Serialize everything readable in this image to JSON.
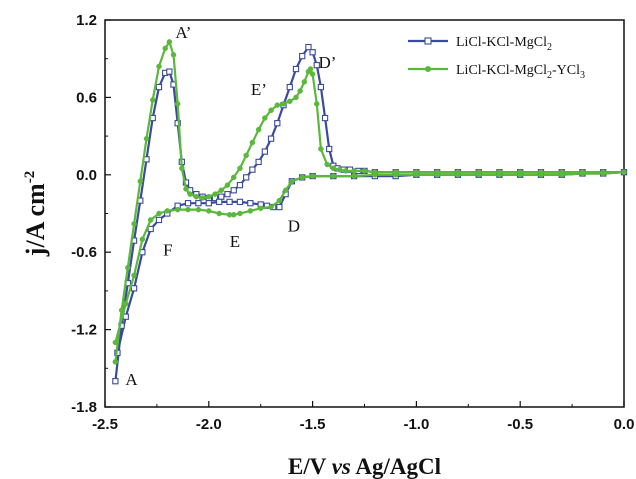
{
  "chart_data": {
    "type": "line",
    "title": "",
    "xlabel": {
      "main": "E/V ",
      "italic": "vs",
      "rest": " Ag/AgCl"
    },
    "ylabel": {
      "main": "j/A cm",
      "sup": "-2"
    },
    "xlim": [
      -2.5,
      0.0
    ],
    "ylim": [
      -1.8,
      1.2
    ],
    "xticks": [
      "-2.5",
      "-2.0",
      "-1.5",
      "-1.0",
      "-0.5",
      "0.0"
    ],
    "yticks": [
      "1.2",
      "0.6",
      "0.0",
      "-0.6",
      "-1.2",
      "-1.8"
    ],
    "grid": false,
    "legend_position": "top-right",
    "series": [
      {
        "name": {
          "main": "LiCl-KCl-MgCl",
          "sub": "2",
          "tail": "",
          "sub2": ""
        },
        "color": "#3a4a9c",
        "marker": "open-square",
        "x": [
          -2.45,
          -2.42,
          -2.39,
          -2.36,
          -2.33,
          -2.3,
          -2.27,
          -2.24,
          -2.21,
          -2.19,
          -2.17,
          -2.15,
          -2.13,
          -2.11,
          -2.09,
          -2.06,
          -2.03,
          -2.0,
          -1.97,
          -1.94,
          -1.91,
          -1.88,
          -1.85,
          -1.82,
          -1.79,
          -1.76,
          -1.73,
          -1.7,
          -1.67,
          -1.64,
          -1.61,
          -1.58,
          -1.55,
          -1.52,
          -1.5,
          -1.48,
          -1.46,
          -1.44,
          -1.42,
          -1.4,
          -1.38,
          -1.35,
          -1.32,
          -1.28,
          -1.25,
          -1.2,
          -1.1,
          -1.0,
          -0.9,
          -0.8,
          -0.7,
          -0.6,
          -0.5,
          -0.4,
          -0.3,
          -0.2,
          -0.1,
          0.0,
          -0.1,
          -0.2,
          -0.3,
          -0.4,
          -0.5,
          -0.6,
          -0.7,
          -0.8,
          -0.9,
          -1.0,
          -1.1,
          -1.2,
          -1.3,
          -1.4,
          -1.5,
          -1.55,
          -1.6,
          -1.63,
          -1.66,
          -1.69,
          -1.72,
          -1.75,
          -1.8,
          -1.85,
          -1.9,
          -1.95,
          -2.0,
          -2.05,
          -2.1,
          -2.15,
          -2.2,
          -2.24,
          -2.28,
          -2.32,
          -2.36,
          -2.4,
          -2.44
        ],
        "y": [
          -1.6,
          -1.17,
          -0.84,
          -0.51,
          -0.2,
          0.12,
          0.44,
          0.68,
          0.79,
          0.8,
          0.7,
          0.4,
          0.1,
          -0.06,
          -0.12,
          -0.15,
          -0.17,
          -0.18,
          -0.18,
          -0.17,
          -0.15,
          -0.12,
          -0.08,
          -0.02,
          0.04,
          0.1,
          0.18,
          0.28,
          0.4,
          0.54,
          0.68,
          0.82,
          0.92,
          0.99,
          0.95,
          0.85,
          0.68,
          0.44,
          0.2,
          0.07,
          0.05,
          0.04,
          0.04,
          0.03,
          0.03,
          0.02,
          0.02,
          0.02,
          0.02,
          0.02,
          0.02,
          0.02,
          0.02,
          0.02,
          0.02,
          0.02,
          0.02,
          0.02,
          0.01,
          0.01,
          0.0,
          0.0,
          0.0,
          0.0,
          0.0,
          0.0,
          0.0,
          0.0,
          -0.01,
          -0.01,
          -0.01,
          -0.01,
          -0.01,
          -0.02,
          -0.05,
          -0.15,
          -0.25,
          -0.25,
          -0.24,
          -0.23,
          -0.22,
          -0.21,
          -0.21,
          -0.21,
          -0.22,
          -0.22,
          -0.22,
          -0.24,
          -0.3,
          -0.35,
          -0.42,
          -0.6,
          -0.88,
          -1.1,
          -1.38
        ]
      },
      {
        "name": {
          "main": "LiCl-KCl-MgCl",
          "sub": "2",
          "tail": "-YCl",
          "sub2": "3"
        },
        "color": "#5cb83a",
        "marker": "filled-circle",
        "x": [
          -2.45,
          -2.42,
          -2.39,
          -2.36,
          -2.33,
          -2.3,
          -2.27,
          -2.24,
          -2.21,
          -2.19,
          -2.17,
          -2.15,
          -2.13,
          -2.11,
          -2.09,
          -2.06,
          -2.03,
          -2.0,
          -1.97,
          -1.94,
          -1.91,
          -1.88,
          -1.85,
          -1.82,
          -1.79,
          -1.76,
          -1.73,
          -1.7,
          -1.67,
          -1.64,
          -1.61,
          -1.58,
          -1.56,
          -1.54,
          -1.52,
          -1.51,
          -1.5,
          -1.48,
          -1.46,
          -1.43,
          -1.4,
          -1.37,
          -1.34,
          -1.3,
          -1.25,
          -1.2,
          -1.1,
          -1.0,
          -0.9,
          -0.8,
          -0.7,
          -0.6,
          -0.5,
          -0.4,
          -0.3,
          -0.2,
          -0.1,
          0.0,
          -0.1,
          -0.2,
          -0.3,
          -0.4,
          -0.5,
          -0.6,
          -0.7,
          -0.8,
          -0.9,
          -1.0,
          -1.1,
          -1.2,
          -1.3,
          -1.4,
          -1.5,
          -1.55,
          -1.6,
          -1.63,
          -1.66,
          -1.7,
          -1.75,
          -1.8,
          -1.85,
          -1.88,
          -1.9,
          -1.95,
          -2.0,
          -2.05,
          -2.1,
          -2.15,
          -2.2,
          -2.24,
          -2.28,
          -2.32,
          -2.36,
          -2.4,
          -2.45
        ],
        "y": [
          -1.45,
          -1.05,
          -0.72,
          -0.38,
          -0.05,
          0.28,
          0.58,
          0.84,
          0.98,
          1.03,
          0.93,
          0.55,
          0.05,
          -0.11,
          -0.15,
          -0.17,
          -0.18,
          -0.17,
          -0.15,
          -0.12,
          -0.08,
          -0.02,
          0.05,
          0.15,
          0.25,
          0.35,
          0.44,
          0.5,
          0.54,
          0.55,
          0.57,
          0.6,
          0.65,
          0.72,
          0.8,
          0.82,
          0.78,
          0.55,
          0.2,
          0.08,
          0.05,
          0.04,
          0.03,
          0.03,
          0.03,
          0.02,
          0.02,
          0.02,
          0.02,
          0.02,
          0.02,
          0.02,
          0.02,
          0.02,
          0.02,
          0.02,
          0.02,
          0.02,
          0.01,
          0.01,
          0.0,
          0.0,
          0.0,
          0.0,
          0.0,
          0.0,
          0.0,
          0.0,
          0.0,
          0.0,
          -0.01,
          -0.01,
          -0.01,
          -0.02,
          -0.05,
          -0.12,
          -0.2,
          -0.25,
          -0.26,
          -0.28,
          -0.3,
          -0.31,
          -0.31,
          -0.3,
          -0.28,
          -0.27,
          -0.27,
          -0.27,
          -0.28,
          -0.3,
          -0.35,
          -0.5,
          -0.78,
          -1.0,
          -1.3
        ]
      }
    ],
    "annotations": [
      {
        "label": "A’",
        "x": -2.19,
        "y": 1.03
      },
      {
        "label": "E’",
        "x": -1.73,
        "y": 0.54
      },
      {
        "label": "D’",
        "x": -1.51,
        "y": 0.86
      },
      {
        "label": "F",
        "x": -2.22,
        "y": -0.5
      },
      {
        "label": "E",
        "x": -1.88,
        "y": -0.42
      },
      {
        "label": "D",
        "x": -1.62,
        "y": -0.33
      },
      {
        "label": "A",
        "x": -2.45,
        "y": -1.6
      }
    ]
  }
}
